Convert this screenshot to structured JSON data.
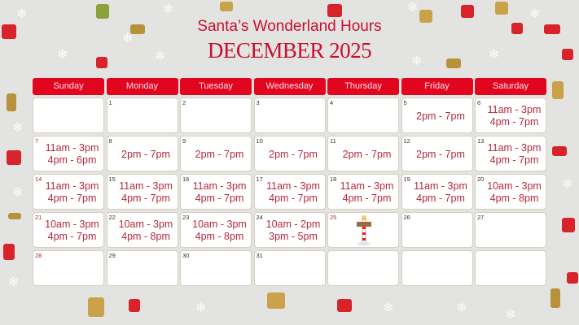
{
  "header": {
    "title": "Santa’s Wonderland Hours",
    "subtitle": "DECEMBER 2025"
  },
  "colors": {
    "accent": "#e1061e",
    "text": "#b5283a",
    "background": "#e3e3e1",
    "cell_border": "#d6cfbf"
  },
  "weekdays": [
    "Sunday",
    "Monday",
    "Tuesday",
    "Wednesday",
    "Thursday",
    "Friday",
    "Saturday"
  ],
  "days": [
    {
      "num": "",
      "hours": []
    },
    {
      "num": "1",
      "hours": []
    },
    {
      "num": "2",
      "hours": []
    },
    {
      "num": "3",
      "hours": []
    },
    {
      "num": "4",
      "hours": []
    },
    {
      "num": "5",
      "hours": [
        "2pm - 7pm"
      ]
    },
    {
      "num": "6",
      "hours": [
        "11am - 3pm",
        "4pm - 7pm"
      ]
    },
    {
      "num": "7",
      "red": true,
      "hours": [
        "11am - 3pm",
        "4pm - 6pm"
      ]
    },
    {
      "num": "8",
      "hours": [
        "2pm - 7pm"
      ]
    },
    {
      "num": "9",
      "hours": [
        "2pm - 7pm"
      ]
    },
    {
      "num": "10",
      "hours": [
        "2pm - 7pm"
      ]
    },
    {
      "num": "11",
      "hours": [
        "2pm - 7pm"
      ]
    },
    {
      "num": "12",
      "hours": [
        "2pm - 7pm"
      ]
    },
    {
      "num": "13",
      "hours": [
        "11am - 3pm",
        "4pm - 7pm"
      ]
    },
    {
      "num": "14",
      "red": true,
      "hours": [
        "11am - 3pm",
        "4pm - 7pm"
      ]
    },
    {
      "num": "15",
      "hours": [
        "11am - 3pm",
        "4pm - 7pm"
      ]
    },
    {
      "num": "16",
      "hours": [
        "11am - 3pm",
        "4pm - 7pm"
      ]
    },
    {
      "num": "17",
      "hours": [
        "11am - 3pm",
        "4pm - 7pm"
      ]
    },
    {
      "num": "18",
      "hours": [
        "11am - 3pm",
        "4pm - 7pm"
      ]
    },
    {
      "num": "19",
      "hours": [
        "11am - 3pm",
        "4pm - 7pm"
      ]
    },
    {
      "num": "20",
      "hours": [
        "10am - 3pm",
        "4pm - 8pm"
      ]
    },
    {
      "num": "21",
      "red": true,
      "hours": [
        "10am - 3pm",
        "4pm - 7pm"
      ]
    },
    {
      "num": "22",
      "hours": [
        "10am - 3pm",
        "4pm - 8pm"
      ]
    },
    {
      "num": "23",
      "hours": [
        "10am - 3pm",
        "4pm - 8pm"
      ]
    },
    {
      "num": "24",
      "hours": [
        "10am - 2pm",
        "3pm - 5pm"
      ]
    },
    {
      "num": "25",
      "red": true,
      "hours": [],
      "icon": "north-pole-sign-icon"
    },
    {
      "num": "26",
      "hours": []
    },
    {
      "num": "27",
      "hours": []
    },
    {
      "num": "28",
      "red": true,
      "hours": []
    },
    {
      "num": "29",
      "hours": []
    },
    {
      "num": "30",
      "hours": []
    },
    {
      "num": "31",
      "hours": []
    },
    {
      "num": "",
      "hours": []
    },
    {
      "num": "",
      "hours": []
    },
    {
      "num": "",
      "hours": []
    }
  ]
}
